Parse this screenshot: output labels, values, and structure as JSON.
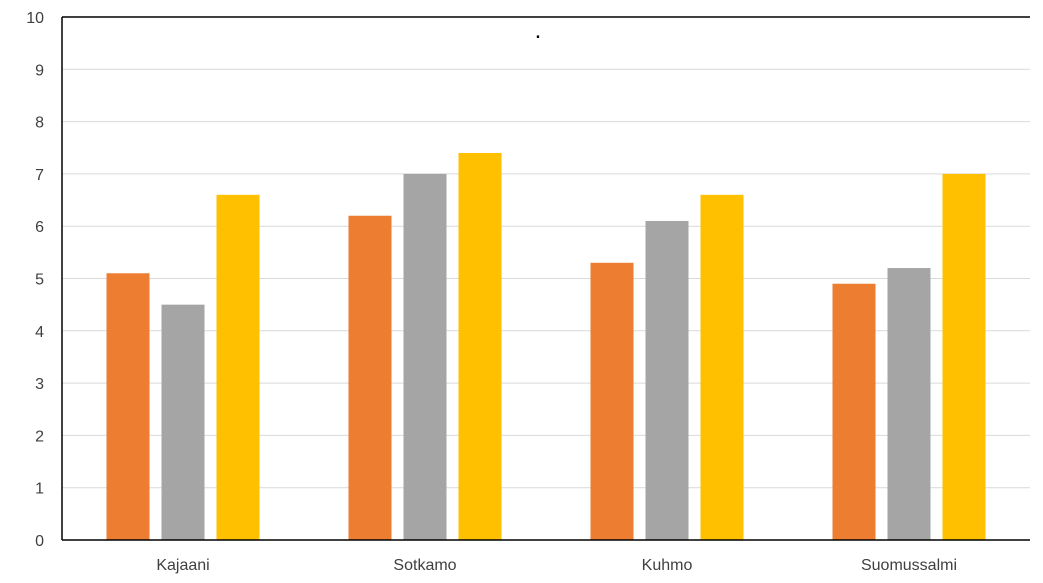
{
  "chart_data": {
    "type": "bar",
    "title": ".",
    "categories": [
      "Kajaani",
      "Sotkamo",
      "Kuhmo",
      "Suomussalmi"
    ],
    "series": [
      {
        "values": [
          5.1,
          6.2,
          5.3,
          4.9
        ],
        "color": "#ED7D31"
      },
      {
        "values": [
          4.5,
          7.0,
          6.1,
          5.2
        ],
        "color": "#A5A5A5"
      },
      {
        "values": [
          6.6,
          7.4,
          6.6,
          7.0
        ],
        "color": "#FFC000"
      }
    ],
    "ylim": [
      0,
      10
    ],
    "yticks": [
      "0",
      "1",
      "2",
      "3",
      "4",
      "5",
      "6",
      "7",
      "8",
      "9",
      "10"
    ],
    "grid": true,
    "legend": "none"
  }
}
